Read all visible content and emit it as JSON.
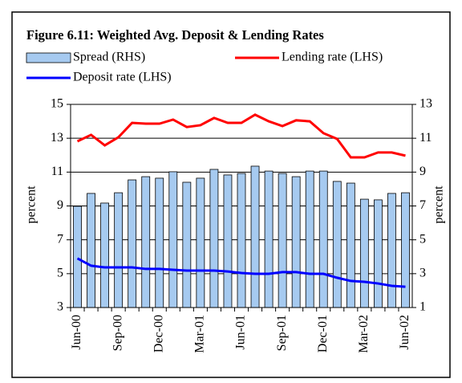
{
  "chart_data": {
    "type": "combo",
    "title": "Figure 6.11: Weighted Avg. Deposit & Lending Rates",
    "ylabel": "percent",
    "y2label": "percent",
    "categories": [
      "Jun-00",
      null,
      null,
      "Sep-00",
      null,
      null,
      "Dec-00",
      null,
      null,
      "Mar-01",
      null,
      null,
      "Jun-01",
      null,
      null,
      "Sep-01",
      null,
      null,
      "Dec-01",
      null,
      null,
      "Mar-02",
      null,
      null,
      "Jun-02"
    ],
    "series": [
      {
        "name": "Spread (RHS)",
        "type": "bar",
        "axis": "y2",
        "color": "#a6caf0",
        "values": [
          6.98,
          7.74,
          7.17,
          7.78,
          8.54,
          8.73,
          8.64,
          9.02,
          8.4,
          8.64,
          9.16,
          8.83,
          8.92,
          9.35,
          9.06,
          8.92,
          8.73,
          9.06,
          9.06,
          8.45,
          8.35,
          7.4,
          7.36,
          7.74,
          7.78
        ]
      },
      {
        "name": "Lending rate (LHS)",
        "type": "line",
        "color": "#ff0000",
        "values": [
          12.82,
          13.2,
          12.58,
          13.06,
          13.91,
          13.86,
          13.86,
          14.1,
          13.66,
          13.77,
          14.2,
          13.91,
          13.91,
          14.39,
          14.0,
          13.72,
          14.06,
          14.0,
          13.3,
          12.96,
          11.87,
          11.87,
          12.16,
          12.16,
          11.97
        ]
      },
      {
        "name": "Deposit rate (LHS)",
        "type": "line",
        "color": "#0000ff",
        "values": [
          5.9,
          5.47,
          5.37,
          5.37,
          5.37,
          5.28,
          5.28,
          5.23,
          5.18,
          5.18,
          5.18,
          5.13,
          5.04,
          4.99,
          4.99,
          5.09,
          5.09,
          4.99,
          4.99,
          4.76,
          4.57,
          4.52,
          4.42,
          4.28,
          4.23
        ]
      }
    ],
    "ylim": [
      3,
      15
    ],
    "yticks": [
      3,
      5,
      7,
      9,
      11,
      13,
      15
    ],
    "y2lim": [
      1,
      13
    ],
    "y2ticks": [
      1,
      3,
      5,
      7,
      9,
      11,
      13
    ],
    "grid": true
  }
}
